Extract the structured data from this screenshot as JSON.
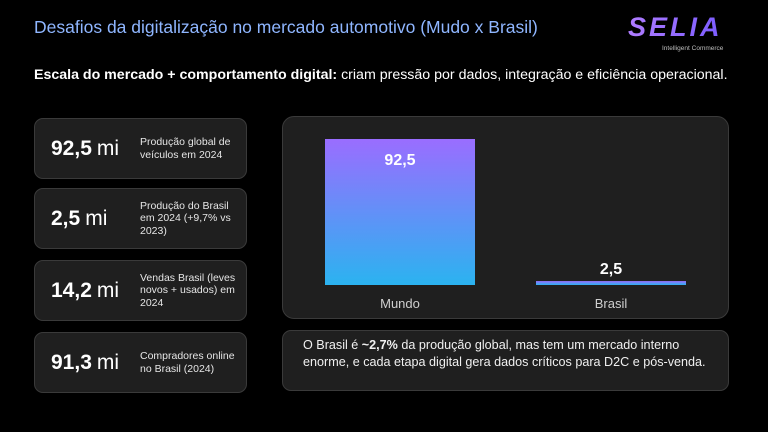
{
  "header": {
    "title": "Desafios da digitalização no mercado automotivo (Mudo x Brasil)",
    "logo": {
      "name": "SELIA",
      "tagline": "Intelligent Commerce"
    }
  },
  "subtitle": {
    "bold": "Escala do mercado + comportamento digital:",
    "rest": " criam pressão por dados, integração e eficiência operacional."
  },
  "cards": [
    {
      "number": "92,5",
      "unit": "mi",
      "description": "Produção global de veículos em 2024"
    },
    {
      "number": "2,5",
      "unit": "mi",
      "description": "Produção do Brasil em 2024 (+9,7% vs 2023)"
    },
    {
      "number": "14,2",
      "unit": "mi",
      "description": "Vendas Brasil (leves novos + usados) em 2024"
    },
    {
      "number": "91,3",
      "unit": "mi",
      "description": "Compradores online no Brasil (2024)"
    }
  ],
  "chart_data": {
    "type": "bar",
    "categories": [
      "Mundo",
      "Brasil"
    ],
    "values": [
      92.5,
      2.5
    ],
    "data_labels": [
      "92,5",
      "2,5"
    ],
    "title": "",
    "xlabel": "",
    "ylabel": "",
    "ylim": [
      0,
      92.5
    ],
    "grid": false,
    "colors": {
      "bar_top": "#9a6dff",
      "bar_bottom": "#2bb3f0",
      "label": "#ffffff",
      "tick": "#cfcfcf"
    }
  },
  "note": {
    "part1": "O Brasil é ",
    "bold": "~2,7%",
    "part2": " da produção global, mas tem um mercado interno enorme, e cada etapa digital gera dados críticos para D2C e pós-venda."
  }
}
